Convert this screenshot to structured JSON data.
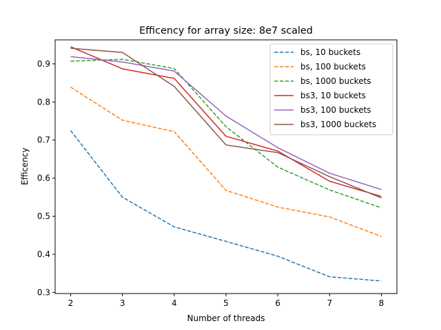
{
  "chart_data": {
    "type": "line",
    "title": "Efficency for array size: 8e7 scaled",
    "xlabel": "Number of threads",
    "ylabel": "Efficency",
    "x": [
      2,
      3,
      4,
      5,
      6,
      7,
      8
    ],
    "xlim": [
      1.7,
      8.3
    ],
    "ylim": [
      0.297,
      0.963
    ],
    "xticks": [
      2,
      3,
      4,
      5,
      6,
      7,
      8
    ],
    "yticks": [
      0.3,
      0.4,
      0.5,
      0.6,
      0.7,
      0.8,
      0.9
    ],
    "ytick_labels": [
      "0.3",
      "0.4",
      "0.5",
      "0.6",
      "0.7",
      "0.8",
      "0.9"
    ],
    "grid": false,
    "legend_position": "top-right",
    "series": [
      {
        "name": "bs, 10 buckets",
        "color": "#1f77b4",
        "dashed": true,
        "values": [
          0.725,
          0.55,
          0.472,
          0.434,
          0.395,
          0.341,
          0.33
        ]
      },
      {
        "name": "bs, 100 buckets",
        "color": "#ff7f0e",
        "dashed": true,
        "values": [
          0.839,
          0.752,
          0.722,
          0.568,
          0.524,
          0.498,
          0.447
        ]
      },
      {
        "name": "bs, 1000 buckets",
        "color": "#2ca02c",
        "dashed": true,
        "values": [
          0.907,
          0.912,
          0.888,
          0.735,
          0.629,
          0.569,
          0.522
        ]
      },
      {
        "name": "bs3, 10 buckets",
        "color": "#d62728",
        "dashed": false,
        "values": [
          0.945,
          0.887,
          0.862,
          0.71,
          0.671,
          0.592,
          0.552
        ]
      },
      {
        "name": "bs3, 100 buckets",
        "color": "#9467bd",
        "dashed": false,
        "values": [
          0.919,
          0.905,
          0.881,
          0.763,
          0.68,
          0.613,
          0.57
        ]
      },
      {
        "name": "bs3, 1000 buckets",
        "color": "#8c564b",
        "dashed": false,
        "values": [
          0.941,
          0.93,
          0.841,
          0.687,
          0.667,
          0.604,
          0.548
        ]
      }
    ]
  }
}
